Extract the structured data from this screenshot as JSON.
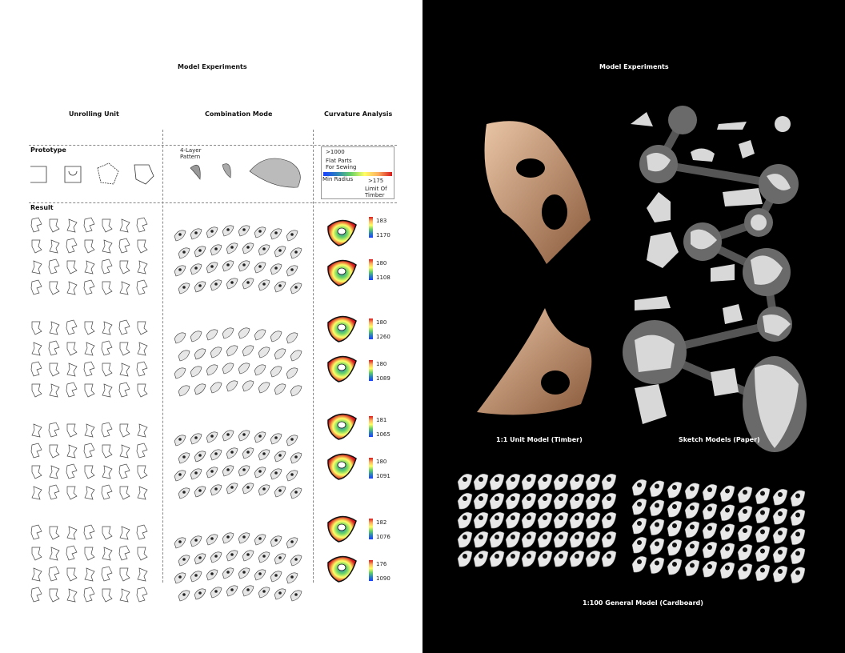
{
  "left": {
    "title": "Model Experiments",
    "col_unrolling": "Unrolling Unit",
    "col_combination": "Combination Mode",
    "col_curvature": "Curvature Analysis",
    "row_prototype": "Prototype",
    "row_result": "Result",
    "pattern_label_1": "4-Layer",
    "pattern_label_2": "Pattern",
    "legend": {
      "max": ">1000",
      "flat1": "Flat Parts",
      "flat2": "For Sewing",
      "min_radius": "Min Radius",
      "limit_val": ">175",
      "limit1": "Limit Of",
      "limit2": "Timber"
    },
    "curvature_values": [
      {
        "top": "183",
        "bottom": "1170"
      },
      {
        "top": "180",
        "bottom": "1108"
      },
      {
        "top": "180",
        "bottom": "1260"
      },
      {
        "top": "180",
        "bottom": "1089"
      },
      {
        "top": "181",
        "bottom": "1065"
      },
      {
        "top": "180",
        "bottom": "1091"
      },
      {
        "top": "182",
        "bottom": "1076"
      },
      {
        "top": "176",
        "bottom": "1090"
      }
    ]
  },
  "right": {
    "title": "Model Experiments",
    "caption_timber": "1:1 Unit Model (Timber)",
    "caption_paper": "Sketch Models (Paper)",
    "caption_general": "1:100 General Model (Cardboard)"
  }
}
